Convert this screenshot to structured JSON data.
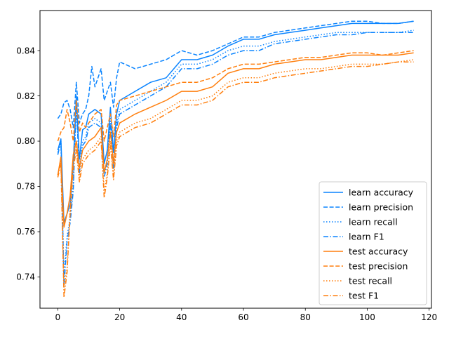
{
  "chart_data": {
    "type": "line",
    "title": "",
    "xlabel": "",
    "ylabel": "",
    "xlim": [
      -5.75,
      120.75
    ],
    "ylim": [
      0.7262,
      0.8577
    ],
    "xticks": [
      0,
      20,
      40,
      60,
      80,
      100,
      120
    ],
    "yticks": [
      0.74,
      0.76,
      0.78,
      0.8,
      0.82,
      0.84
    ],
    "ytick_labels": [
      "0.74",
      "0.76",
      "0.78",
      "0.80",
      "0.82",
      "0.84"
    ],
    "grid": false,
    "legend_position": "lower-right",
    "colors": {
      "learn": "#0a84ff",
      "test": "#ff7f0e"
    },
    "series": [
      {
        "name": "learn accuracy",
        "group": "learn",
        "style": "solid",
        "points": [
          [
            0,
            0.796
          ],
          [
            1,
            0.801
          ],
          [
            2,
            0.764
          ],
          [
            3,
            0.768
          ],
          [
            4,
            0.772
          ],
          [
            5,
            0.79
          ],
          [
            6,
            0.82
          ],
          [
            7,
            0.792
          ],
          [
            8,
            0.805
          ],
          [
            9,
            0.806
          ],
          [
            10,
            0.812
          ],
          [
            12,
            0.814
          ],
          [
            14,
            0.812
          ],
          [
            15,
            0.79
          ],
          [
            16,
            0.796
          ],
          [
            17,
            0.815
          ],
          [
            18,
            0.795
          ],
          [
            19,
            0.812
          ],
          [
            20,
            0.818
          ],
          [
            25,
            0.822
          ],
          [
            30,
            0.826
          ],
          [
            35,
            0.828
          ],
          [
            40,
            0.836
          ],
          [
            45,
            0.836
          ],
          [
            50,
            0.838
          ],
          [
            55,
            0.842
          ],
          [
            60,
            0.845
          ],
          [
            65,
            0.845
          ],
          [
            70,
            0.847
          ],
          [
            75,
            0.848
          ],
          [
            80,
            0.849
          ],
          [
            85,
            0.85
          ],
          [
            90,
            0.851
          ],
          [
            95,
            0.852
          ],
          [
            100,
            0.852
          ],
          [
            105,
            0.852
          ],
          [
            110,
            0.852
          ],
          [
            115,
            0.853
          ]
        ]
      },
      {
        "name": "learn precision",
        "group": "learn",
        "style": "dashed",
        "points": [
          [
            0,
            0.81
          ],
          [
            1,
            0.812
          ],
          [
            2,
            0.817
          ],
          [
            3,
            0.818
          ],
          [
            4,
            0.814
          ],
          [
            5,
            0.806
          ],
          [
            6,
            0.826
          ],
          [
            7,
            0.808
          ],
          [
            8,
            0.812
          ],
          [
            9,
            0.814
          ],
          [
            10,
            0.82
          ],
          [
            11,
            0.833
          ],
          [
            12,
            0.824
          ],
          [
            14,
            0.832
          ],
          [
            15,
            0.818
          ],
          [
            16,
            0.822
          ],
          [
            17,
            0.826
          ],
          [
            18,
            0.815
          ],
          [
            19,
            0.828
          ],
          [
            20,
            0.835
          ],
          [
            25,
            0.832
          ],
          [
            30,
            0.834
          ],
          [
            35,
            0.836
          ],
          [
            40,
            0.84
          ],
          [
            45,
            0.838
          ],
          [
            50,
            0.84
          ],
          [
            55,
            0.843
          ],
          [
            60,
            0.846
          ],
          [
            65,
            0.846
          ],
          [
            70,
            0.848
          ],
          [
            75,
            0.849
          ],
          [
            80,
            0.85
          ],
          [
            85,
            0.851
          ],
          [
            90,
            0.852
          ],
          [
            95,
            0.853
          ],
          [
            100,
            0.853
          ],
          [
            105,
            0.852
          ],
          [
            110,
            0.852
          ],
          [
            115,
            0.853
          ]
        ]
      },
      {
        "name": "learn recall",
        "group": "learn",
        "style": "dotted",
        "points": [
          [
            0,
            0.795
          ],
          [
            1,
            0.8
          ],
          [
            2,
            0.74
          ],
          [
            3,
            0.758
          ],
          [
            4,
            0.766
          ],
          [
            5,
            0.78
          ],
          [
            6,
            0.818
          ],
          [
            7,
            0.788
          ],
          [
            8,
            0.8
          ],
          [
            9,
            0.802
          ],
          [
            10,
            0.808
          ],
          [
            12,
            0.81
          ],
          [
            14,
            0.808
          ],
          [
            15,
            0.786
          ],
          [
            16,
            0.792
          ],
          [
            17,
            0.81
          ],
          [
            18,
            0.79
          ],
          [
            19,
            0.808
          ],
          [
            20,
            0.814
          ],
          [
            25,
            0.818
          ],
          [
            30,
            0.822
          ],
          [
            35,
            0.826
          ],
          [
            40,
            0.834
          ],
          [
            45,
            0.834
          ],
          [
            50,
            0.836
          ],
          [
            55,
            0.84
          ],
          [
            60,
            0.842
          ],
          [
            65,
            0.842
          ],
          [
            70,
            0.844
          ],
          [
            75,
            0.845
          ],
          [
            80,
            0.846
          ],
          [
            85,
            0.847
          ],
          [
            90,
            0.848
          ],
          [
            95,
            0.848
          ],
          [
            100,
            0.848
          ],
          [
            105,
            0.848
          ],
          [
            110,
            0.848
          ],
          [
            115,
            0.849
          ]
        ]
      },
      {
        "name": "learn F1",
        "group": "learn",
        "style": "dashdot",
        "points": [
          [
            0,
            0.794
          ],
          [
            1,
            0.8
          ],
          [
            2,
            0.736
          ],
          [
            3,
            0.756
          ],
          [
            4,
            0.764
          ],
          [
            5,
            0.778
          ],
          [
            6,
            0.816
          ],
          [
            7,
            0.786
          ],
          [
            8,
            0.798
          ],
          [
            9,
            0.8
          ],
          [
            10,
            0.806
          ],
          [
            12,
            0.808
          ],
          [
            14,
            0.806
          ],
          [
            15,
            0.784
          ],
          [
            16,
            0.79
          ],
          [
            17,
            0.808
          ],
          [
            18,
            0.788
          ],
          [
            19,
            0.806
          ],
          [
            20,
            0.812
          ],
          [
            25,
            0.816
          ],
          [
            30,
            0.82
          ],
          [
            35,
            0.824
          ],
          [
            40,
            0.832
          ],
          [
            45,
            0.832
          ],
          [
            50,
            0.834
          ],
          [
            55,
            0.838
          ],
          [
            60,
            0.84
          ],
          [
            65,
            0.84
          ],
          [
            70,
            0.843
          ],
          [
            75,
            0.844
          ],
          [
            80,
            0.845
          ],
          [
            85,
            0.846
          ],
          [
            90,
            0.847
          ],
          [
            95,
            0.847
          ],
          [
            100,
            0.848
          ],
          [
            105,
            0.848
          ],
          [
            110,
            0.848
          ],
          [
            115,
            0.848
          ]
        ]
      },
      {
        "name": "test accuracy",
        "group": "test",
        "style": "solid",
        "points": [
          [
            0,
            0.785
          ],
          [
            1,
            0.793
          ],
          [
            2,
            0.762
          ],
          [
            3,
            0.768
          ],
          [
            4,
            0.776
          ],
          [
            5,
            0.794
          ],
          [
            6,
            0.8
          ],
          [
            7,
            0.788
          ],
          [
            8,
            0.796
          ],
          [
            9,
            0.798
          ],
          [
            10,
            0.8
          ],
          [
            12,
            0.802
          ],
          [
            14,
            0.806
          ],
          [
            15,
            0.786
          ],
          [
            16,
            0.792
          ],
          [
            17,
            0.804
          ],
          [
            18,
            0.79
          ],
          [
            19,
            0.804
          ],
          [
            20,
            0.808
          ],
          [
            25,
            0.812
          ],
          [
            30,
            0.815
          ],
          [
            35,
            0.818
          ],
          [
            40,
            0.822
          ],
          [
            45,
            0.822
          ],
          [
            50,
            0.824
          ],
          [
            55,
            0.83
          ],
          [
            60,
            0.832
          ],
          [
            65,
            0.832
          ],
          [
            70,
            0.834
          ],
          [
            75,
            0.835
          ],
          [
            80,
            0.836
          ],
          [
            85,
            0.836
          ],
          [
            90,
            0.837
          ],
          [
            95,
            0.838
          ],
          [
            100,
            0.838
          ],
          [
            105,
            0.838
          ],
          [
            110,
            0.838
          ],
          [
            115,
            0.839
          ]
        ]
      },
      {
        "name": "test precision",
        "group": "test",
        "style": "dashed",
        "points": [
          [
            0,
            0.8
          ],
          [
            1,
            0.804
          ],
          [
            2,
            0.806
          ],
          [
            3,
            0.814
          ],
          [
            4,
            0.808
          ],
          [
            5,
            0.8
          ],
          [
            6,
            0.818
          ],
          [
            7,
            0.804
          ],
          [
            8,
            0.808
          ],
          [
            9,
            0.806
          ],
          [
            10,
            0.808
          ],
          [
            12,
            0.812
          ],
          [
            14,
            0.814
          ],
          [
            15,
            0.8
          ],
          [
            16,
            0.806
          ],
          [
            17,
            0.812
          ],
          [
            18,
            0.802
          ],
          [
            19,
            0.816
          ],
          [
            20,
            0.818
          ],
          [
            25,
            0.82
          ],
          [
            30,
            0.822
          ],
          [
            35,
            0.824
          ],
          [
            40,
            0.826
          ],
          [
            45,
            0.826
          ],
          [
            50,
            0.828
          ],
          [
            55,
            0.832
          ],
          [
            60,
            0.834
          ],
          [
            65,
            0.834
          ],
          [
            70,
            0.835
          ],
          [
            75,
            0.836
          ],
          [
            80,
            0.837
          ],
          [
            85,
            0.837
          ],
          [
            90,
            0.838
          ],
          [
            95,
            0.839
          ],
          [
            100,
            0.839
          ],
          [
            105,
            0.838
          ],
          [
            110,
            0.839
          ],
          [
            115,
            0.84
          ]
        ]
      },
      {
        "name": "test recall",
        "group": "test",
        "style": "dotted",
        "points": [
          [
            0,
            0.785
          ],
          [
            1,
            0.792
          ],
          [
            2,
            0.735
          ],
          [
            3,
            0.744
          ],
          [
            4,
            0.77
          ],
          [
            5,
            0.79
          ],
          [
            6,
            0.798
          ],
          [
            7,
            0.784
          ],
          [
            8,
            0.792
          ],
          [
            9,
            0.794
          ],
          [
            10,
            0.796
          ],
          [
            12,
            0.798
          ],
          [
            14,
            0.802
          ],
          [
            15,
            0.778
          ],
          [
            16,
            0.786
          ],
          [
            17,
            0.8
          ],
          [
            18,
            0.785
          ],
          [
            19,
            0.8
          ],
          [
            20,
            0.804
          ],
          [
            25,
            0.808
          ],
          [
            30,
            0.81
          ],
          [
            35,
            0.814
          ],
          [
            40,
            0.818
          ],
          [
            45,
            0.818
          ],
          [
            50,
            0.82
          ],
          [
            55,
            0.826
          ],
          [
            60,
            0.828
          ],
          [
            65,
            0.828
          ],
          [
            70,
            0.83
          ],
          [
            75,
            0.831
          ],
          [
            80,
            0.832
          ],
          [
            85,
            0.832
          ],
          [
            90,
            0.833
          ],
          [
            95,
            0.834
          ],
          [
            100,
            0.834
          ],
          [
            105,
            0.834
          ],
          [
            110,
            0.835
          ],
          [
            115,
            0.836
          ]
        ]
      },
      {
        "name": "test F1",
        "group": "test",
        "style": "dashdot",
        "points": [
          [
            0,
            0.784
          ],
          [
            1,
            0.79
          ],
          [
            2,
            0.731
          ],
          [
            3,
            0.742
          ],
          [
            4,
            0.768
          ],
          [
            5,
            0.788
          ],
          [
            6,
            0.796
          ],
          [
            7,
            0.782
          ],
          [
            8,
            0.79
          ],
          [
            9,
            0.792
          ],
          [
            10,
            0.794
          ],
          [
            12,
            0.796
          ],
          [
            14,
            0.8
          ],
          [
            15,
            0.775
          ],
          [
            16,
            0.784
          ],
          [
            17,
            0.798
          ],
          [
            18,
            0.783
          ],
          [
            19,
            0.798
          ],
          [
            20,
            0.802
          ],
          [
            25,
            0.806
          ],
          [
            30,
            0.808
          ],
          [
            35,
            0.812
          ],
          [
            40,
            0.816
          ],
          [
            45,
            0.816
          ],
          [
            50,
            0.818
          ],
          [
            55,
            0.824
          ],
          [
            60,
            0.826
          ],
          [
            65,
            0.826
          ],
          [
            70,
            0.828
          ],
          [
            75,
            0.829
          ],
          [
            80,
            0.83
          ],
          [
            85,
            0.831
          ],
          [
            90,
            0.832
          ],
          [
            95,
            0.833
          ],
          [
            100,
            0.833
          ],
          [
            105,
            0.834
          ],
          [
            110,
            0.835
          ],
          [
            115,
            0.835
          ]
        ]
      }
    ]
  }
}
